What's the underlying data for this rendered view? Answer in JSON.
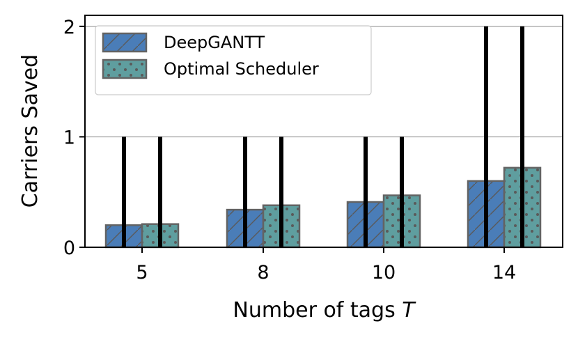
{
  "chart_data": {
    "type": "bar",
    "categories": [
      "5",
      "8",
      "10",
      "14"
    ],
    "series": [
      {
        "name": "DeepGANTT",
        "values": [
          0.2,
          0.34,
          0.41,
          0.6
        ],
        "error_upper": [
          1,
          1,
          1,
          2
        ],
        "color": "#4a7db8",
        "hatch": "diagonal"
      },
      {
        "name": "Optimal Scheduler",
        "values": [
          0.21,
          0.38,
          0.47,
          0.72
        ],
        "error_upper": [
          1,
          1,
          1,
          2
        ],
        "color": "#5f9e9f",
        "hatch": "dots"
      }
    ],
    "title": "",
    "xlabel": "Number of tags",
    "xlabel_symbol": "T",
    "ylabel": "Carriers Saved",
    "ylim": [
      0,
      2.1
    ],
    "yticks": [
      0,
      1,
      2
    ],
    "grid": "y",
    "legend": "top-left"
  }
}
